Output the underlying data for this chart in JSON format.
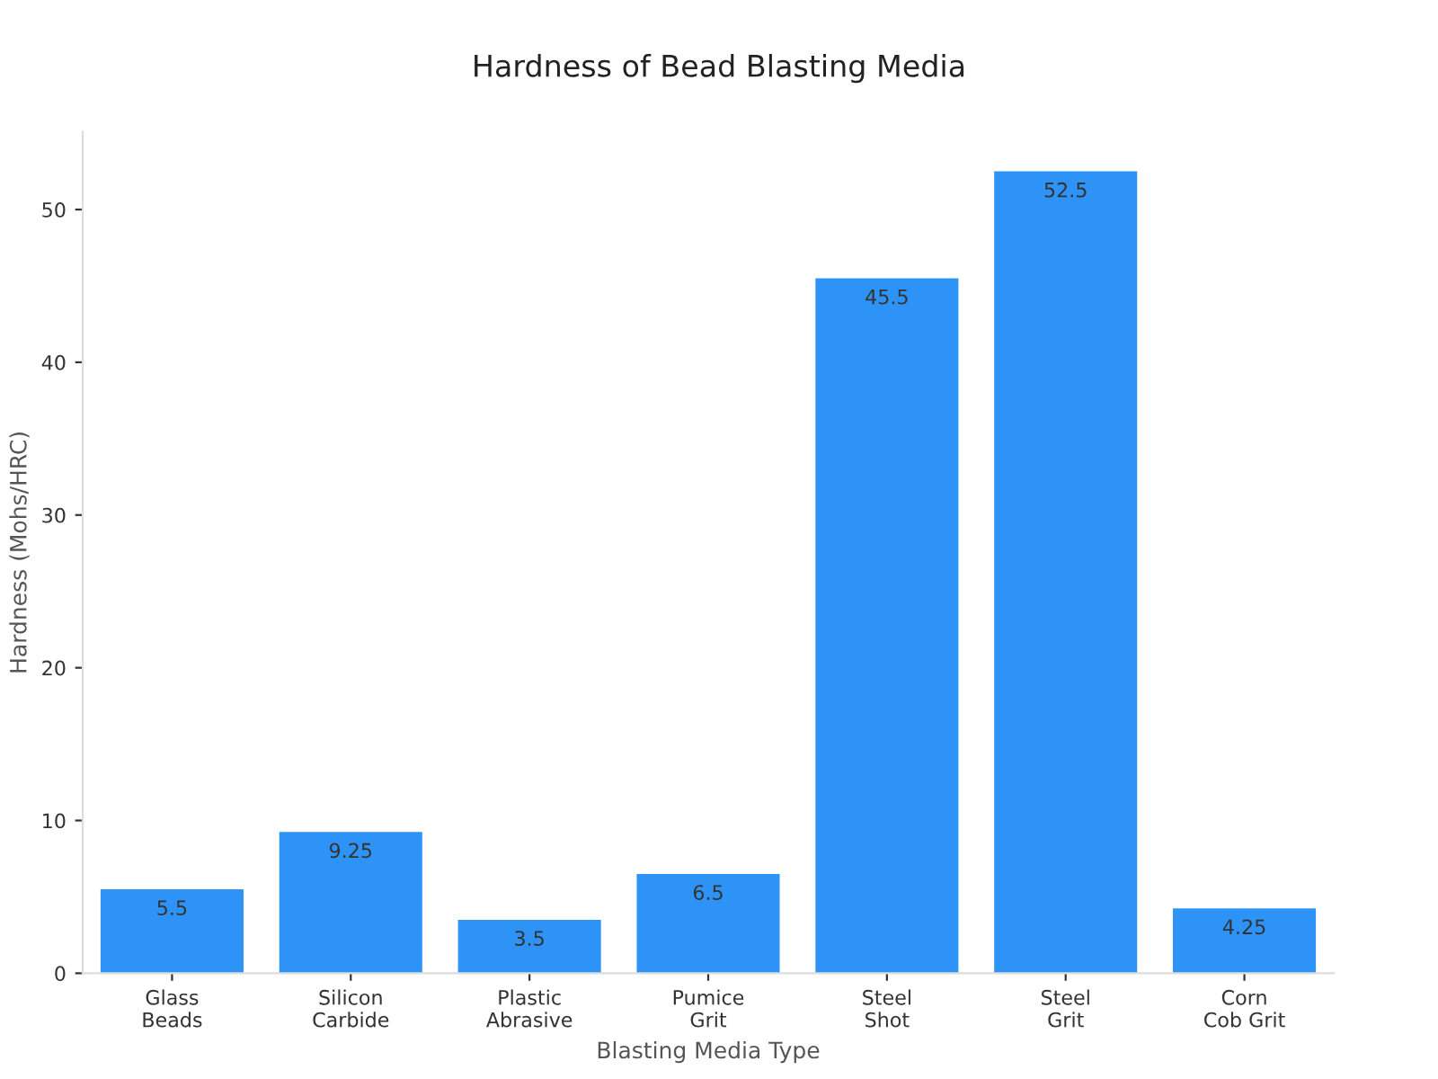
{
  "chart_data": {
    "type": "bar",
    "title": "Hardness of Bead Blasting Media",
    "xlabel": "Blasting Media Type",
    "ylabel": "Hardness (Mohs/HRC)",
    "categories": [
      "Glass\nBeads",
      "Silicon\nCarbide",
      "Plastic\nAbrasive",
      "Pumice\nGrit",
      "Steel\nShot",
      "Steel\nGrit",
      "Corn\nCob Grit"
    ],
    "values": [
      5.5,
      9.25,
      3.5,
      6.5,
      45.5,
      52.5,
      4.25
    ],
    "color": "#2e93f7",
    "ylim": [
      0,
      55.1
    ],
    "yticks": [
      0,
      10,
      20,
      30,
      40,
      50
    ],
    "grid": false,
    "data_labels": true
  }
}
